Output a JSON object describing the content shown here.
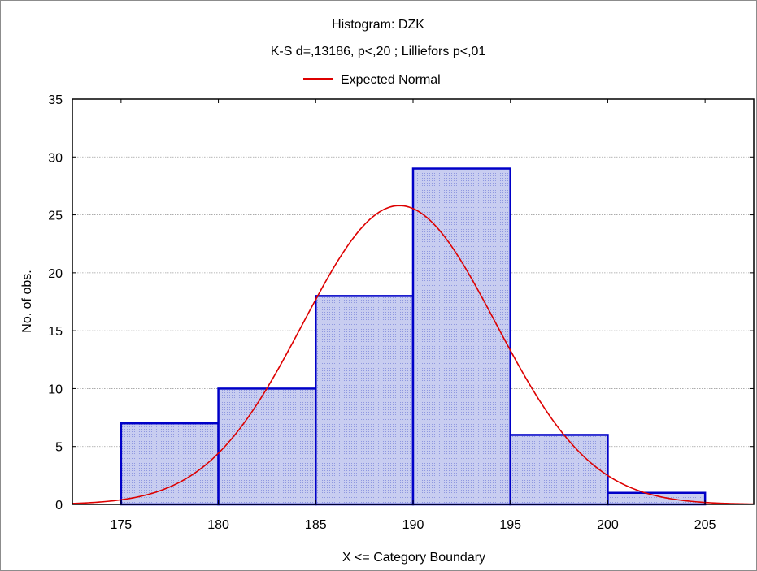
{
  "chart_data": {
    "type": "bar",
    "title": "Histogram: DZK",
    "subtitle": "K-S d=,13186, p<,20 ; Lilliefors p<,01",
    "xlabel": "X <= Category Boundary",
    "ylabel": "No. of obs.",
    "legend": {
      "entries": [
        "Expected Normal"
      ],
      "placement": "top"
    },
    "xlim": [
      172.5,
      207.5
    ],
    "ylim": [
      0,
      35
    ],
    "x_ticks": [
      175,
      180,
      185,
      190,
      195,
      200,
      205
    ],
    "y_ticks": [
      0,
      5,
      10,
      15,
      20,
      25,
      30,
      35
    ],
    "grid": true,
    "bins": [
      {
        "from": 175,
        "to": 180,
        "count": 7
      },
      {
        "from": 180,
        "to": 185,
        "count": 10
      },
      {
        "from": 185,
        "to": 190,
        "count": 18
      },
      {
        "from": 190,
        "to": 195,
        "count": 29
      },
      {
        "from": 195,
        "to": 200,
        "count": 6
      },
      {
        "from": 200,
        "to": 205,
        "count": 1
      }
    ],
    "expected_normal": {
      "name": "Expected Normal",
      "mean": 189.3,
      "sd": 4.95,
      "peak": 25.8
    },
    "colors": {
      "bar_fill": "#c8cdf0",
      "bar_stroke": "#0000c8",
      "curve": "#dd0000",
      "grid": "#a0a0a0"
    }
  }
}
